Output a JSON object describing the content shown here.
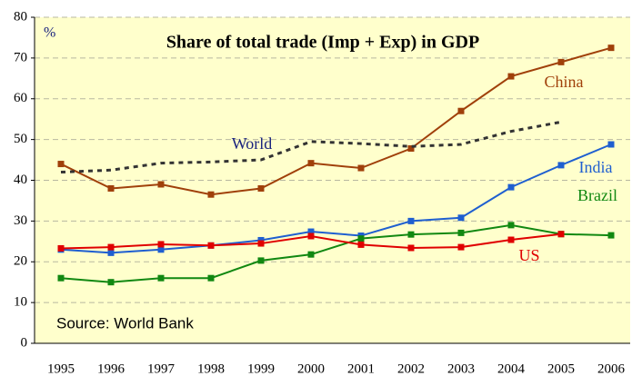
{
  "chart_data": {
    "type": "line",
    "title": "Share of total trade (Imp + Exp) in GDP",
    "y_label": "%",
    "annotation": "Source: World Bank",
    "categories": [
      "1995",
      "1996",
      "1997",
      "1998",
      "1999",
      "2000",
      "2001",
      "2002",
      "2003",
      "2004",
      "2005",
      "2006"
    ],
    "series": [
      {
        "name": "China",
        "color": "#a0400a",
        "dashed": false,
        "markers": true,
        "values": [
          44,
          38,
          39,
          36.5,
          38,
          44.2,
          43,
          47.8,
          57,
          65.5,
          69,
          72.5
        ]
      },
      {
        "name": "World",
        "color": "#333333",
        "label_color": "#1a237e",
        "dashed": true,
        "markers": false,
        "values": [
          42,
          42.5,
          44.2,
          44.5,
          45,
          49.5,
          49,
          48.3,
          48.8,
          52,
          54.3,
          null
        ]
      },
      {
        "name": "India",
        "color": "#1f5fd0",
        "dashed": false,
        "markers": true,
        "values": [
          23,
          22.2,
          23,
          24,
          25.3,
          27.4,
          26.4,
          30,
          30.8,
          38.3,
          43.7,
          48.8
        ]
      },
      {
        "name": "Brazil",
        "color": "#118811",
        "dashed": false,
        "markers": true,
        "values": [
          16,
          15,
          16,
          16,
          20.3,
          21.8,
          25.7,
          26.7,
          27.1,
          29,
          26.8,
          26.5
        ]
      },
      {
        "name": "US",
        "color": "#e00000",
        "dashed": false,
        "markers": true,
        "values": [
          23.3,
          23.6,
          24.3,
          24,
          24.5,
          26.3,
          24.2,
          23.4,
          23.6,
          25.4,
          26.8,
          null
        ]
      }
    ],
    "ylim": [
      0,
      80
    ],
    "yticks": [
      0,
      10,
      20,
      30,
      40,
      50,
      60,
      70,
      80
    ],
    "grid": true
  }
}
